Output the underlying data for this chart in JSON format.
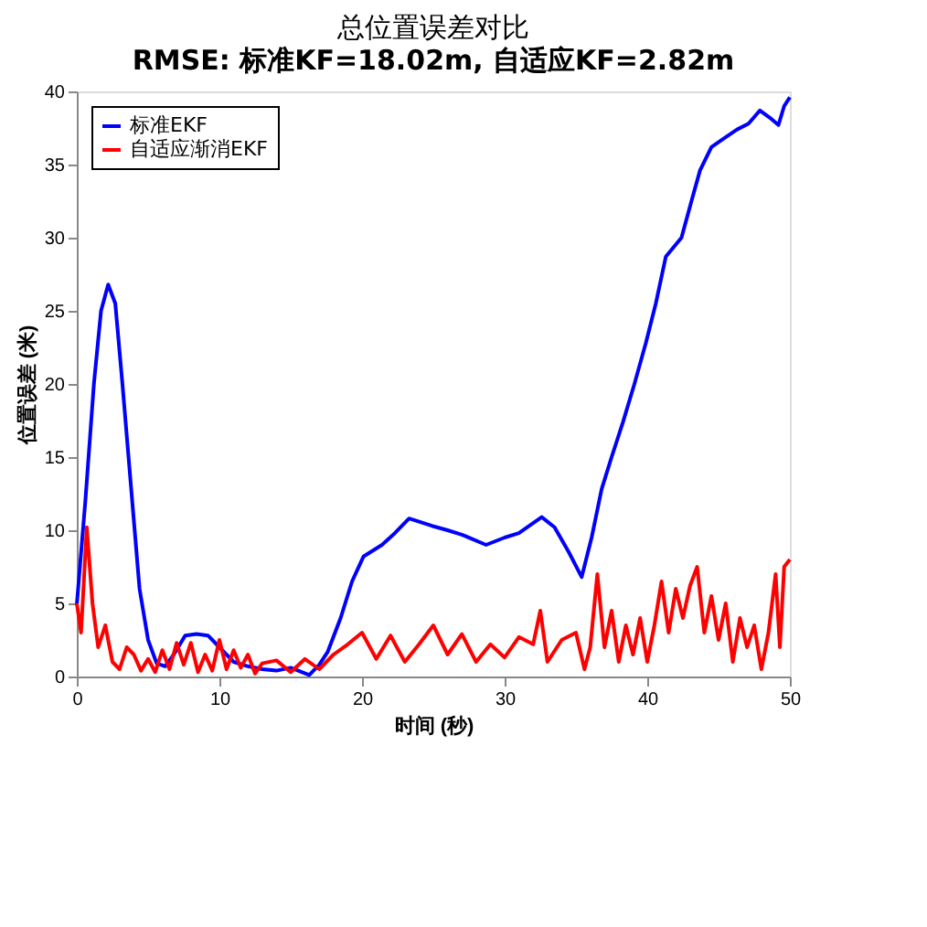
{
  "chart_data": {
    "type": "line",
    "title": "总位置误差对比",
    "subtitle": "RMSE: 标准KF=18.02m, 自适应KF=2.82m",
    "xlabel": "时间 (秒)",
    "ylabel": "位置误差 (米)",
    "xlim": [
      0,
      50
    ],
    "ylim": [
      0,
      40
    ],
    "xticks": [
      0,
      10,
      20,
      30,
      40,
      50
    ],
    "yticks": [
      0,
      5,
      10,
      15,
      20,
      25,
      30,
      35,
      40
    ],
    "grid": false,
    "legend": "top left",
    "line_style": "solid",
    "marker": "none",
    "series": [
      {
        "name": "标准EKF",
        "color": "#0000ff",
        "x": [
          0,
          0.6,
          1.2,
          1.7,
          2.2,
          2.7,
          3.2,
          3.8,
          4.4,
          5.0,
          5.6,
          6.2,
          6.8,
          7.6,
          8.4,
          9.2,
          10,
          11,
          12,
          13,
          14,
          15,
          16.3,
          17,
          17.6,
          18.5,
          19.3,
          20.1,
          21.4,
          22.3,
          23.3,
          24.9,
          26,
          27,
          28.7,
          30,
          31,
          32.6,
          33.5,
          34.5,
          35.4,
          36.1,
          36.8,
          37.5,
          38.3,
          39.1,
          39.9,
          40.6,
          41.3,
          42.4,
          43.1,
          43.7,
          44.5,
          45.4,
          46.3,
          47.1,
          47.9,
          48.6,
          49.2,
          49.6,
          50
        ],
        "values": [
          4.9,
          12,
          20,
          25,
          26.8,
          25.5,
          20,
          13,
          6,
          2.5,
          0.9,
          0.7,
          1.5,
          2.8,
          2.9,
          2.8,
          2.0,
          1.0,
          0.7,
          0.5,
          0.4,
          0.6,
          0.1,
          0.8,
          1.7,
          4,
          6.5,
          8.2,
          9.0,
          9.8,
          10.8,
          10.3,
          10.0,
          9.7,
          9.0,
          9.5,
          9.8,
          10.9,
          10.2,
          8.5,
          6.8,
          9.5,
          12.8,
          15,
          17.4,
          20,
          22.8,
          25.5,
          28.7,
          30,
          32.5,
          34.6,
          36.2,
          36.8,
          37.4,
          37.8,
          38.7,
          38.2,
          37.7,
          39.0,
          39.6
        ]
      },
      {
        "name": "自适应渐消EKF",
        "color": "#ff0000",
        "x": [
          0,
          0.3,
          0.7,
          1.1,
          1.5,
          2,
          2.5,
          3,
          3.5,
          4,
          4.5,
          5,
          5.5,
          6,
          6.5,
          7,
          7.5,
          8,
          8.5,
          9,
          9.5,
          10,
          10.5,
          11,
          11.5,
          12,
          12.5,
          13,
          14,
          15,
          16,
          17,
          18,
          19,
          20,
          21,
          22,
          23,
          24,
          25,
          26,
          27,
          28,
          29,
          30,
          31,
          32,
          32.5,
          33,
          34,
          35,
          35.6,
          36,
          36.5,
          37,
          37.5,
          38,
          38.5,
          39,
          39.5,
          40,
          40.5,
          41,
          41.5,
          42,
          42.5,
          43,
          43.5,
          44,
          44.5,
          45,
          45.5,
          46,
          46.5,
          47,
          47.5,
          48,
          48.5,
          49,
          49.3,
          49.6,
          50
        ],
        "values": [
          5,
          3,
          10.2,
          5,
          2,
          3.5,
          1,
          0.5,
          2,
          1.5,
          0.4,
          1.2,
          0.3,
          1.8,
          0.5,
          2.3,
          0.8,
          2.3,
          0.3,
          1.5,
          0.4,
          2.5,
          0.5,
          1.8,
          0.6,
          1.5,
          0.2,
          0.9,
          1.1,
          0.3,
          1.2,
          0.5,
          1.5,
          2.2,
          3.0,
          1.2,
          2.8,
          1.0,
          2.2,
          3.5,
          1.5,
          2.9,
          1.0,
          2.2,
          1.3,
          2.7,
          2.2,
          4.5,
          1.0,
          2.5,
          3.0,
          0.5,
          2.0,
          7.0,
          2.0,
          4.5,
          1.0,
          3.5,
          1.5,
          4.0,
          1.0,
          3.5,
          6.5,
          3.0,
          6.0,
          4.0,
          6.2,
          7.5,
          3.0,
          5.5,
          2.5,
          5.0,
          1.0,
          4.0,
          2.0,
          3.5,
          0.5,
          3.0,
          7.0,
          2.0,
          7.5,
          8.0
        ]
      }
    ]
  }
}
